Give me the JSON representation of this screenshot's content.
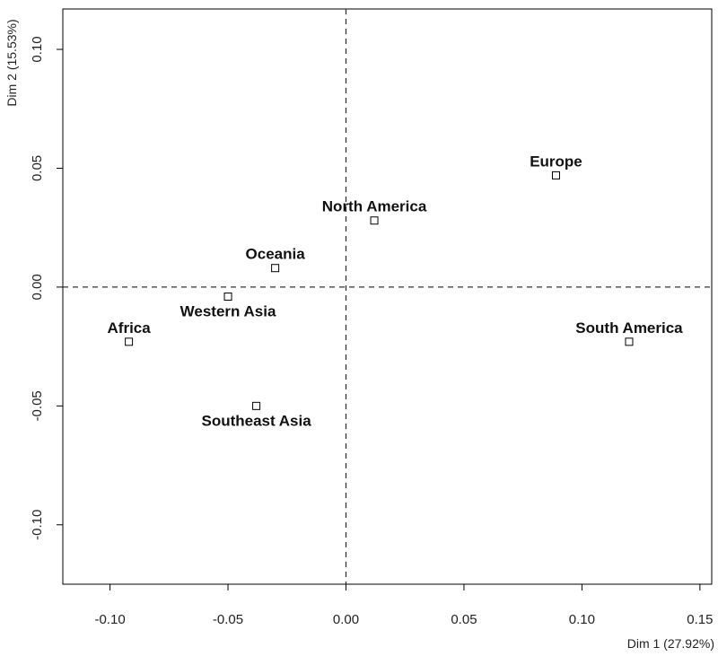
{
  "chart_data": {
    "type": "scatter",
    "xlabel": "Dim 1 (27.92%)",
    "ylabel": "Dim 2 (15.53%)",
    "xlim": [
      -0.12,
      0.155
    ],
    "ylim": [
      -0.125,
      0.117
    ],
    "x_ticks": [
      -0.1,
      -0.05,
      0.0,
      0.05,
      0.1,
      0.15
    ],
    "x_tick_labels": [
      "-0.10",
      "-0.05",
      "0.00",
      "0.05",
      "0.10",
      "0.15"
    ],
    "y_ticks": [
      -0.1,
      -0.05,
      0.0,
      0.05,
      0.1
    ],
    "y_tick_labels": [
      "-0.10",
      "-0.05",
      "0.00",
      "0.05",
      "0.10"
    ],
    "reference_lines": {
      "x": 0,
      "y": 0,
      "style": "dashed"
    },
    "grid": false,
    "marker": "open-square",
    "points": [
      {
        "label": "Europe",
        "x": 0.089,
        "y": 0.047,
        "label_pos": "above"
      },
      {
        "label": "North America",
        "x": 0.012,
        "y": 0.028,
        "label_pos": "above"
      },
      {
        "label": "Oceania",
        "x": -0.03,
        "y": 0.008,
        "label_pos": "above"
      },
      {
        "label": "Western Asia",
        "x": -0.05,
        "y": -0.004,
        "label_pos": "below"
      },
      {
        "label": "Africa",
        "x": -0.092,
        "y": -0.023,
        "label_pos": "above"
      },
      {
        "label": "South America",
        "x": 0.12,
        "y": -0.023,
        "label_pos": "above"
      },
      {
        "label": "Southeast Asia",
        "x": -0.038,
        "y": -0.05,
        "label_pos": "below"
      }
    ]
  }
}
